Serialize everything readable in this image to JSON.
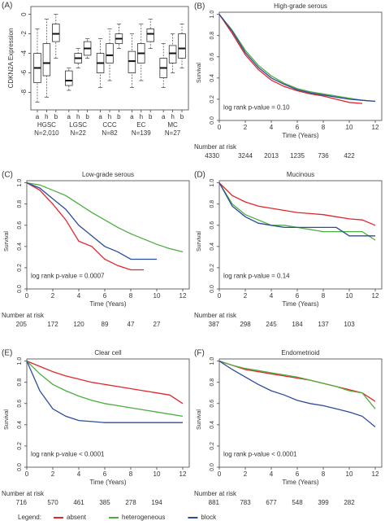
{
  "legend": {
    "title": "Legend:",
    "items": [
      {
        "name": "absent",
        "color": "#e3262b"
      },
      {
        "name": "heterogeneous",
        "color": "#4cae3f"
      },
      {
        "name": "block",
        "color": "#2b4c9a"
      }
    ]
  },
  "chart_data": [
    {
      "type": "box",
      "panel": "(A)",
      "ylabel": "CDKN2A Expression",
      "categories": [
        "a",
        "h",
        "b",
        "a",
        "h",
        "b",
        "a",
        "h",
        "b",
        "a",
        "h",
        "b",
        "a",
        "h",
        "b"
      ],
      "groups": [
        {
          "name": "HGSC",
          "n": "N=2,010"
        },
        {
          "name": "LGSC",
          "n": "N=22"
        },
        {
          "name": "CCC",
          "n": "N=82"
        },
        {
          "name": "EC",
          "n": "N=139"
        },
        {
          "name": "MC",
          "n": "N=27"
        }
      ],
      "min": [
        -9,
        -8.5,
        -4.5,
        -7.8,
        -5.5,
        -4.5,
        -7.5,
        -6.8,
        -3.5,
        -7.5,
        -6.8,
        -3.5,
        -7.5,
        -6,
        -5.5
      ],
      "q1": [
        -7,
        -6.3,
        -2.8,
        -7.3,
        -5,
        -4.2,
        -6,
        -5,
        -3,
        -6,
        -5,
        -2.8,
        -6.5,
        -5,
        -4.5
      ],
      "median": [
        -5.5,
        -5,
        -2,
        -6.8,
        -4.5,
        -3.5,
        -5,
        -4.2,
        -2.5,
        -4.8,
        -4,
        -2,
        -5.5,
        -4,
        -3.5
      ],
      "q3": [
        -4,
        -3,
        -1,
        -5.8,
        -4,
        -2.8,
        -4,
        -3,
        -2,
        -3.8,
        -3,
        -1.5,
        -4.5,
        -3.2,
        -2
      ],
      "max": [
        -1.5,
        -0.5,
        0,
        -5.5,
        -3.5,
        -2.5,
        -2.5,
        -1.5,
        -1,
        -2,
        -1,
        -0.5,
        -3,
        -2,
        -1
      ],
      "color": "#ffffff",
      "ylim": [
        -9.8,
        0.8
      ],
      "yticks": [
        -8,
        -6,
        -4,
        -2,
        0
      ]
    },
    {
      "type": "line",
      "panel": "(B)",
      "title": "High-grade serous",
      "xlabel": "Time (Years)",
      "ylabel": "Survival",
      "x": [
        0,
        1,
        2,
        3,
        4,
        5,
        6,
        7,
        8,
        9,
        10,
        11,
        12
      ],
      "series": [
        {
          "color": "#e3262b",
          "values": [
            1,
            0.82,
            0.62,
            0.48,
            0.38,
            0.32,
            0.28,
            0.25,
            0.23,
            0.2,
            0.17,
            0.16,
            null
          ]
        },
        {
          "color": "#4cae3f",
          "values": [
            1,
            0.85,
            0.66,
            0.52,
            0.42,
            0.35,
            0.3,
            0.27,
            0.25,
            0.23,
            0.21,
            0.19,
            0.18
          ]
        },
        {
          "color": "#2b4c9a",
          "values": [
            1,
            0.84,
            0.64,
            0.5,
            0.4,
            0.34,
            0.29,
            0.26,
            0.24,
            0.22,
            0.2,
            0.19,
            0.18
          ]
        }
      ],
      "xlim": [
        0,
        12.5
      ],
      "xticks": [
        0,
        2,
        4,
        6,
        8,
        10,
        12
      ],
      "ylim": [
        0,
        1.02
      ],
      "yticks": [
        {
          "value": 0,
          "label": "0.0"
        },
        {
          "value": 0.2,
          "label": "0.2"
        },
        {
          "value": 0.4,
          "label": "0.4"
        },
        {
          "value": 0.6,
          "label": "0.6"
        },
        {
          "value": 0.8,
          "label": "0.8"
        },
        {
          "value": 1,
          "label": "1.0"
        }
      ],
      "annotation": "log rank p-value = 0.10",
      "risk_label": "Number at risk",
      "risk": [
        4330,
        3244,
        2013,
        1235,
        736,
        422
      ]
    },
    {
      "type": "line",
      "panel": "(C)",
      "title": "Low-grade serous",
      "xlabel": "Time (Years)",
      "ylabel": "Survival",
      "x": [
        0,
        1,
        2,
        3,
        4,
        5,
        6,
        7,
        8,
        9,
        10,
        11,
        12
      ],
      "series": [
        {
          "color": "#e3262b",
          "values": [
            1,
            0.93,
            0.8,
            0.65,
            0.45,
            0.4,
            0.28,
            0.22,
            0.18,
            0.18,
            null,
            null,
            null
          ]
        },
        {
          "color": "#4cae3f",
          "values": [
            1,
            0.98,
            0.93,
            0.88,
            0.8,
            0.72,
            0.65,
            0.58,
            0.52,
            0.47,
            0.42,
            0.38,
            0.35
          ]
        },
        {
          "color": "#2b4c9a",
          "values": [
            1,
            0.95,
            0.85,
            0.75,
            0.6,
            0.5,
            0.4,
            0.35,
            0.28,
            0.28,
            0.28,
            null,
            null
          ]
        }
      ],
      "xlim": [
        0,
        12.5
      ],
      "xticks": [
        0,
        2,
        4,
        6,
        8,
        10,
        12
      ],
      "ylim": [
        0,
        1.02
      ],
      "yticks": [
        {
          "value": 0,
          "label": "0.0"
        },
        {
          "value": 0.2,
          "label": "0.2"
        },
        {
          "value": 0.4,
          "label": "0.4"
        },
        {
          "value": 0.6,
          "label": "0.6"
        },
        {
          "value": 0.8,
          "label": "0.8"
        },
        {
          "value": 1,
          "label": "1.0"
        }
      ],
      "annotation": "log rank p-value = 0.0007",
      "risk_label": "Number at risk",
      "risk": [
        205,
        172,
        120,
        89,
        47,
        27
      ]
    },
    {
      "type": "line",
      "panel": "(D)",
      "title": "Mucinous",
      "xlabel": "Time (Years)",
      "ylabel": "Survival",
      "x": [
        0,
        1,
        2,
        3,
        4,
        5,
        6,
        7,
        8,
        9,
        10,
        11,
        12
      ],
      "series": [
        {
          "color": "#e3262b",
          "values": [
            1,
            0.88,
            0.82,
            0.78,
            0.76,
            0.74,
            0.72,
            0.71,
            0.7,
            0.68,
            0.66,
            0.65,
            0.6
          ]
        },
        {
          "color": "#4cae3f",
          "values": [
            1,
            0.8,
            0.7,
            0.65,
            0.6,
            0.6,
            0.58,
            0.56,
            0.54,
            0.54,
            0.54,
            0.54,
            0.46
          ]
        },
        {
          "color": "#2b4c9a",
          "values": [
            1,
            0.78,
            0.68,
            0.62,
            0.6,
            0.58,
            0.58,
            0.58,
            0.58,
            0.58,
            0.5,
            0.5,
            0.5
          ]
        }
      ],
      "xlim": [
        0,
        12.5
      ],
      "xticks": [
        0,
        2,
        4,
        6,
        8,
        10,
        12
      ],
      "ylim": [
        0,
        1.02
      ],
      "yticks": [
        {
          "value": 0,
          "label": "0.0"
        },
        {
          "value": 0.2,
          "label": "0.2"
        },
        {
          "value": 0.4,
          "label": "0.4"
        },
        {
          "value": 0.6,
          "label": "0.6"
        },
        {
          "value": 0.8,
          "label": "0.8"
        },
        {
          "value": 1,
          "label": "1.0"
        }
      ],
      "annotation": "log rank p-value = 0.14",
      "risk_label": "Number at risk",
      "risk": [
        387,
        298,
        245,
        184,
        137,
        103
      ]
    },
    {
      "type": "line",
      "panel": "(E)",
      "title": "Clear cell",
      "xlabel": "Time (Years)",
      "ylabel": "Survival",
      "x": [
        0,
        1,
        2,
        3,
        4,
        5,
        6,
        7,
        8,
        9,
        10,
        11,
        12
      ],
      "series": [
        {
          "color": "#e3262b",
          "values": [
            1,
            0.95,
            0.9,
            0.86,
            0.83,
            0.8,
            0.78,
            0.76,
            0.74,
            0.72,
            0.7,
            0.68,
            0.6
          ]
        },
        {
          "color": "#4cae3f",
          "values": [
            1,
            0.88,
            0.78,
            0.72,
            0.67,
            0.63,
            0.6,
            0.58,
            0.56,
            0.54,
            0.52,
            0.5,
            0.48
          ]
        },
        {
          "color": "#2b4c9a",
          "values": [
            1,
            0.72,
            0.55,
            0.48,
            0.44,
            0.43,
            0.42,
            0.42,
            0.42,
            0.42,
            0.42,
            0.42,
            0.42
          ]
        }
      ],
      "xlim": [
        0,
        12.5
      ],
      "xticks": [
        0,
        2,
        4,
        6,
        8,
        10,
        12
      ],
      "ylim": [
        0,
        1.02
      ],
      "yticks": [
        {
          "value": 0,
          "label": "0.0"
        },
        {
          "value": 0.2,
          "label": "0.2"
        },
        {
          "value": 0.4,
          "label": "0.4"
        },
        {
          "value": 0.6,
          "label": "0.6"
        },
        {
          "value": 0.8,
          "label": "0.8"
        },
        {
          "value": 1,
          "label": "1.0"
        }
      ],
      "annotation": "log rank p-value < 0.0001",
      "risk_label": "Number at risk",
      "risk": [
        716,
        570,
        461,
        385,
        278,
        194
      ]
    },
    {
      "type": "line",
      "panel": "(F)",
      "title": "Endometrioid",
      "xlabel": "Time (Years)",
      "ylabel": "Survival",
      "x": [
        0,
        1,
        2,
        3,
        4,
        5,
        6,
        7,
        8,
        9,
        10,
        11,
        12
      ],
      "series": [
        {
          "color": "#e3262b",
          "values": [
            1,
            0.96,
            0.92,
            0.9,
            0.88,
            0.86,
            0.84,
            0.82,
            0.79,
            0.76,
            0.73,
            0.7,
            0.62
          ]
        },
        {
          "color": "#4cae3f",
          "values": [
            1,
            0.96,
            0.93,
            0.91,
            0.89,
            0.87,
            0.85,
            0.82,
            0.79,
            0.76,
            0.72,
            0.7,
            0.55
          ]
        },
        {
          "color": "#2b4c9a",
          "values": [
            1,
            0.92,
            0.85,
            0.78,
            0.72,
            0.68,
            0.63,
            0.6,
            0.58,
            0.55,
            0.52,
            0.48,
            0.38
          ]
        }
      ],
      "xlim": [
        0,
        12.5
      ],
      "xticks": [
        0,
        2,
        4,
        6,
        8,
        10,
        12
      ],
      "ylim": [
        0,
        1.02
      ],
      "yticks": [
        {
          "value": 0,
          "label": "0.0"
        },
        {
          "value": 0.2,
          "label": "0.2"
        },
        {
          "value": 0.4,
          "label": "0.4"
        },
        {
          "value": 0.6,
          "label": "0.6"
        },
        {
          "value": 0.8,
          "label": "0.8"
        },
        {
          "value": 1,
          "label": "1.0"
        }
      ],
      "annotation": "log rank p-value < 0.0001",
      "risk_label": "Number at risk",
      "risk": [
        881,
        783,
        677,
        548,
        399,
        282
      ]
    }
  ]
}
